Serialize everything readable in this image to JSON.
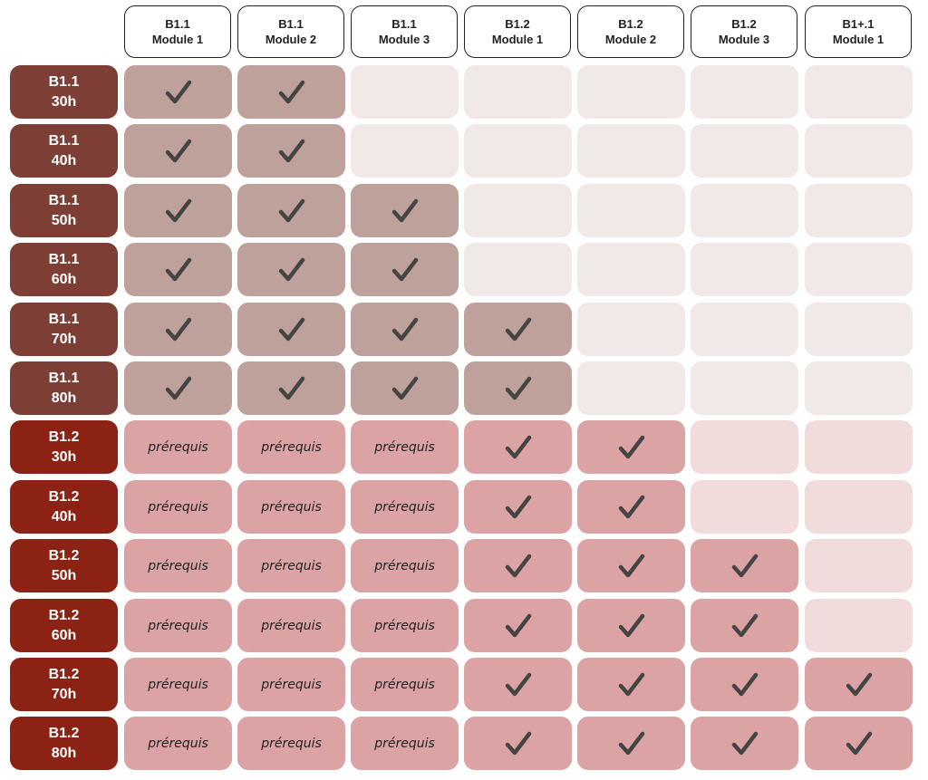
{
  "columns": [
    {
      "level": "B1.1",
      "module": "Module 1"
    },
    {
      "level": "B1.1",
      "module": "Module 2"
    },
    {
      "level": "B1.1",
      "module": "Module 3"
    },
    {
      "level": "B1.2",
      "module": "Module 1"
    },
    {
      "level": "B1.2",
      "module": "Module 2"
    },
    {
      "level": "B1.2",
      "module": "Module 3"
    },
    {
      "level": "B1+.1",
      "module": "Module 1"
    }
  ],
  "colors": {
    "b11_header": "#7d3f35",
    "b11_active": "#bfa19b",
    "b11_empty": "#f1e9e7",
    "b12_header": "#8b2214",
    "b12_active": "#dba3a3",
    "b12_empty": "#f1dcdb",
    "check": "#444444"
  },
  "icons": {
    "check": "check-icon"
  },
  "rows": [
    {
      "level": "B1.1",
      "hours": "30h",
      "group": "b11",
      "cells": [
        "check",
        "check",
        "empty",
        "empty",
        "empty",
        "empty",
        "empty"
      ]
    },
    {
      "level": "B1.1",
      "hours": "40h",
      "group": "b11",
      "cells": [
        "check",
        "check",
        "empty",
        "empty",
        "empty",
        "empty",
        "empty"
      ]
    },
    {
      "level": "B1.1",
      "hours": "50h",
      "group": "b11",
      "cells": [
        "check",
        "check",
        "check",
        "empty",
        "empty",
        "empty",
        "empty"
      ]
    },
    {
      "level": "B1.1",
      "hours": "60h",
      "group": "b11",
      "cells": [
        "check",
        "check",
        "check",
        "empty",
        "empty",
        "empty",
        "empty"
      ]
    },
    {
      "level": "B1.1",
      "hours": "70h",
      "group": "b11",
      "cells": [
        "check",
        "check",
        "check",
        "check",
        "empty",
        "empty",
        "empty"
      ]
    },
    {
      "level": "B1.1",
      "hours": "80h",
      "group": "b11",
      "cells": [
        "check",
        "check",
        "check",
        "check",
        "empty",
        "empty",
        "empty"
      ]
    },
    {
      "level": "B1.2",
      "hours": "30h",
      "group": "b12",
      "cells": [
        "prereq",
        "prereq",
        "prereq",
        "check",
        "check",
        "empty",
        "empty"
      ]
    },
    {
      "level": "B1.2",
      "hours": "40h",
      "group": "b12",
      "cells": [
        "prereq",
        "prereq",
        "prereq",
        "check",
        "check",
        "empty",
        "empty"
      ]
    },
    {
      "level": "B1.2",
      "hours": "50h",
      "group": "b12",
      "cells": [
        "prereq",
        "prereq",
        "prereq",
        "check",
        "check",
        "check",
        "empty"
      ]
    },
    {
      "level": "B1.2",
      "hours": "60h",
      "group": "b12",
      "cells": [
        "prereq",
        "prereq",
        "prereq",
        "check",
        "check",
        "check",
        "empty"
      ]
    },
    {
      "level": "B1.2",
      "hours": "70h",
      "group": "b12",
      "cells": [
        "prereq",
        "prereq",
        "prereq",
        "check",
        "check",
        "check",
        "check"
      ]
    },
    {
      "level": "B1.2",
      "hours": "80h",
      "group": "b12",
      "cells": [
        "prereq",
        "prereq",
        "prereq",
        "check",
        "check",
        "check",
        "check"
      ]
    }
  ],
  "prereq_label": "prérequis"
}
